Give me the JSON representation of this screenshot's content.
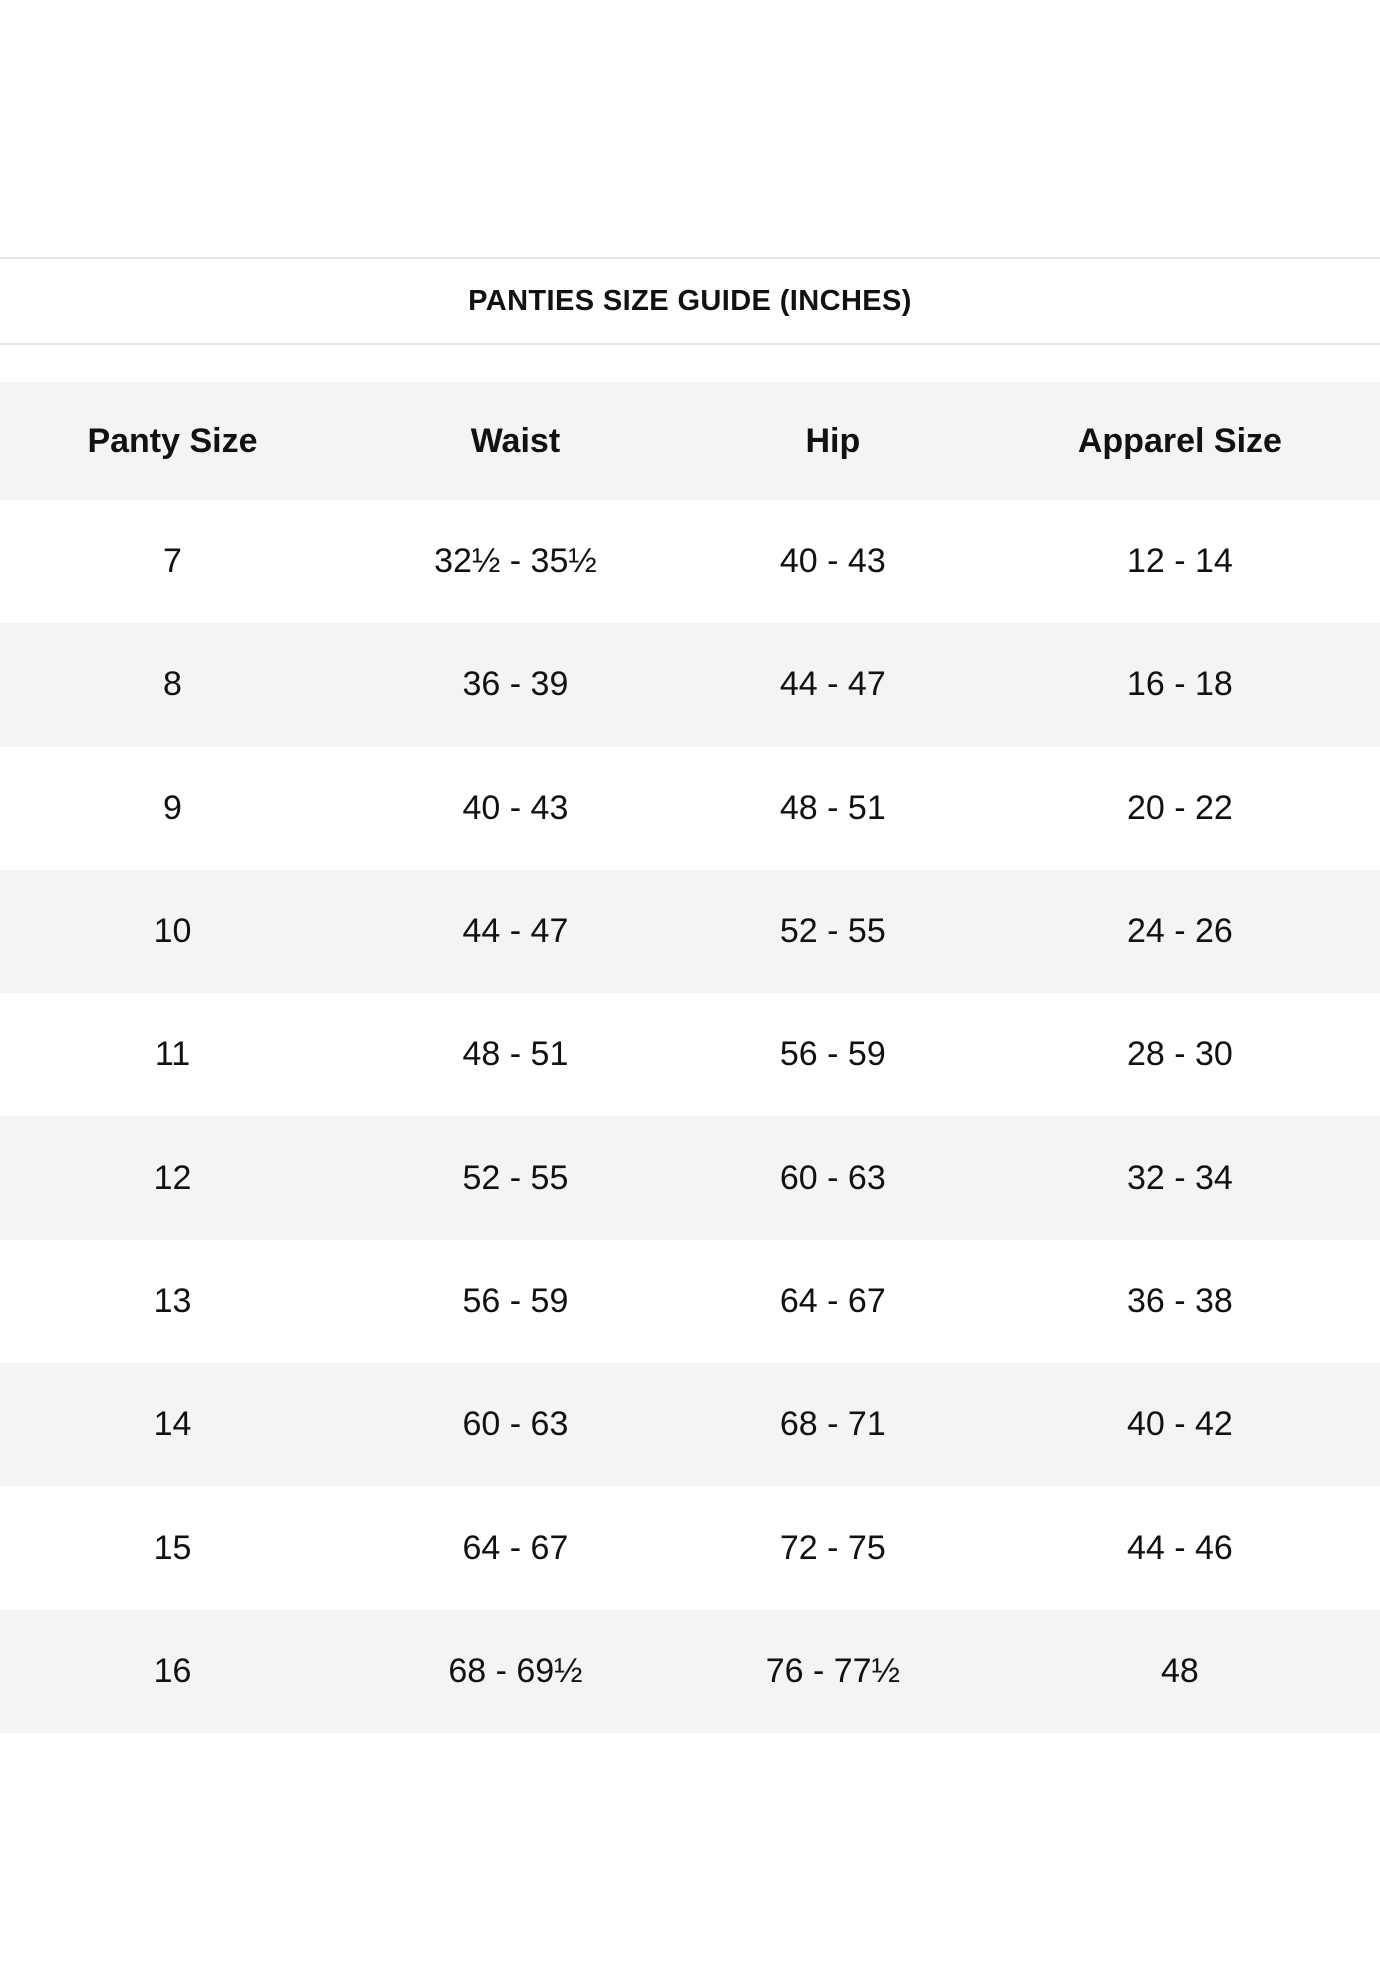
{
  "title": "PANTIES SIZE GUIDE (INCHES)",
  "table": {
    "columns": [
      "Panty Size",
      "Waist",
      "Hip",
      "Apparel Size"
    ],
    "rows": [
      [
        "7",
        "32½ - 35½",
        "40 - 43",
        "12 - 14"
      ],
      [
        "8",
        "36 - 39",
        "44 - 47",
        "16 - 18"
      ],
      [
        "9",
        "40 - 43",
        "48 - 51",
        "20 - 22"
      ],
      [
        "10",
        "44 - 47",
        "52 - 55",
        "24 - 26"
      ],
      [
        "11",
        "48 - 51",
        "56 - 59",
        "28 - 30"
      ],
      [
        "12",
        "52 - 55",
        "60 - 63",
        "32 - 34"
      ],
      [
        "13",
        "56 - 59",
        "64 - 67",
        "36 - 38"
      ],
      [
        "14",
        "60 - 63",
        "68 - 71",
        "40 - 42"
      ],
      [
        "15",
        "64 - 67",
        "72 - 75",
        "44 - 46"
      ],
      [
        "16",
        "68 - 69½",
        "76 - 77½",
        "48"
      ]
    ]
  },
  "colors": {
    "background": "#ffffff",
    "row_alt": "#f4f4f4",
    "hairline": "#e4e4e4",
    "text": "#111111"
  }
}
